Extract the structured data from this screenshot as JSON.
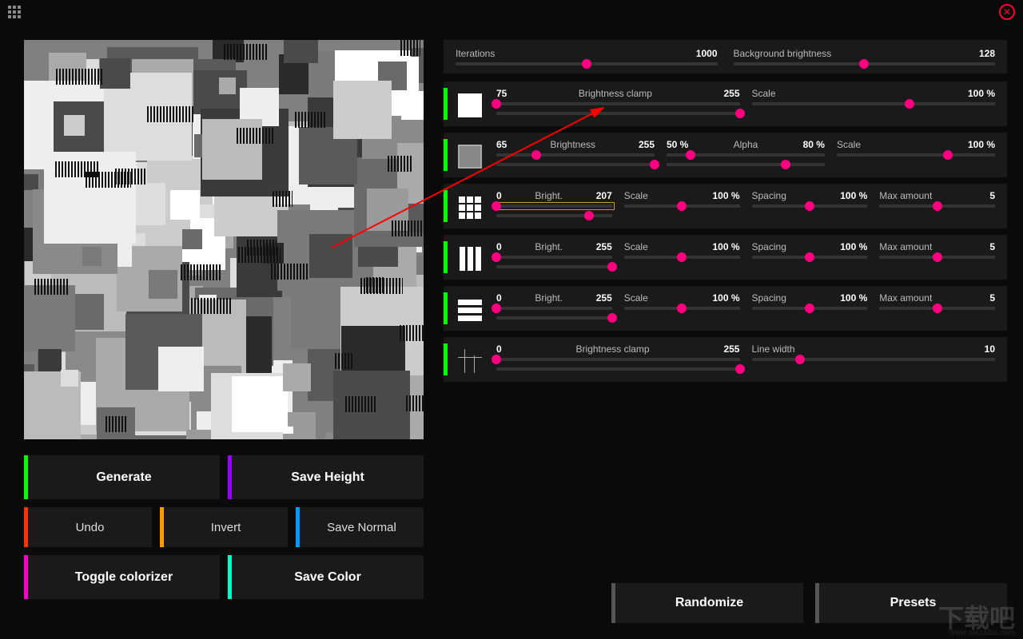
{
  "colors": {
    "accent_green": "#00ff00",
    "accent_purple": "#9900ff",
    "accent_red": "#ff3300",
    "accent_orange": "#ff9900",
    "accent_blue": "#0099ff",
    "accent_magenta": "#ff00cc",
    "accent_cyan": "#00ffcc",
    "slider_thumb": "#ff0080",
    "panel_bg": "#1a1a1a",
    "page_bg": "#0a0a0a"
  },
  "buttons": {
    "generate": "Generate",
    "save_height": "Save Height",
    "undo": "Undo",
    "invert": "Invert",
    "save_normal": "Save Normal",
    "toggle_colorizer": "Toggle colorizer",
    "save_color": "Save Color",
    "randomize": "Randomize",
    "presets": "Presets"
  },
  "top": {
    "iterations": {
      "label": "Iterations",
      "value": "1000",
      "pct": 50
    },
    "bg_brightness": {
      "label": "Background brightness",
      "value": "128",
      "pct": 50
    }
  },
  "panels": [
    {
      "icon": "solid",
      "row1": [
        {
          "valL": "75",
          "lbl": "Brightness clamp",
          "val": "255",
          "pct_top": 0,
          "pct_bot": 100
        },
        {
          "lbl": "Scale",
          "val": "100 %",
          "pct": 65
        }
      ]
    },
    {
      "icon": "solid2",
      "row1": [
        {
          "valL": "65",
          "lbl": "Brightness",
          "val": "255",
          "pct_top": 25,
          "pct_bot": 100
        },
        {
          "valL": "50 %",
          "lbl": "Alpha",
          "val": "80 %",
          "pct_top": 15,
          "pct_bot": 75
        },
        {
          "lbl": "Scale",
          "val": "100 %",
          "pct": 70
        }
      ]
    },
    {
      "icon": "grid3",
      "row1": [
        {
          "valL": "0",
          "lbl": "Bright.",
          "val": "207",
          "pct_top": 0,
          "pct_bot": 80,
          "selected": true
        },
        {
          "lbl": "Scale",
          "val": "100 %",
          "pct": 50
        },
        {
          "lbl": "Spacing",
          "val": "100 %",
          "pct": 50
        },
        {
          "lbl": "Max amount",
          "val": "5",
          "pct": 50
        }
      ]
    },
    {
      "icon": "vbars",
      "row1": [
        {
          "valL": "0",
          "lbl": "Bright.",
          "val": "255",
          "pct_top": 0,
          "pct_bot": 100
        },
        {
          "lbl": "Scale",
          "val": "100 %",
          "pct": 50
        },
        {
          "lbl": "Spacing",
          "val": "100 %",
          "pct": 50
        },
        {
          "lbl": "Max amount",
          "val": "5",
          "pct": 50
        }
      ]
    },
    {
      "icon": "hbars",
      "row1": [
        {
          "valL": "0",
          "lbl": "Bright.",
          "val": "255",
          "pct_top": 0,
          "pct_bot": 100
        },
        {
          "lbl": "Scale",
          "val": "100 %",
          "pct": 50
        },
        {
          "lbl": "Spacing",
          "val": "100 %",
          "pct": 50
        },
        {
          "lbl": "Max amount",
          "val": "5",
          "pct": 50
        }
      ]
    },
    {
      "icon": "cross",
      "row1": [
        {
          "valL": "0",
          "lbl": "Brightness clamp",
          "val": "255",
          "pct_top": 0,
          "pct_bot": 100
        },
        {
          "lbl": "Line width",
          "val": "10",
          "pct": 20
        }
      ]
    }
  ],
  "watermark": "下载吧",
  "watermark_url": "www.xiazaiba.com"
}
